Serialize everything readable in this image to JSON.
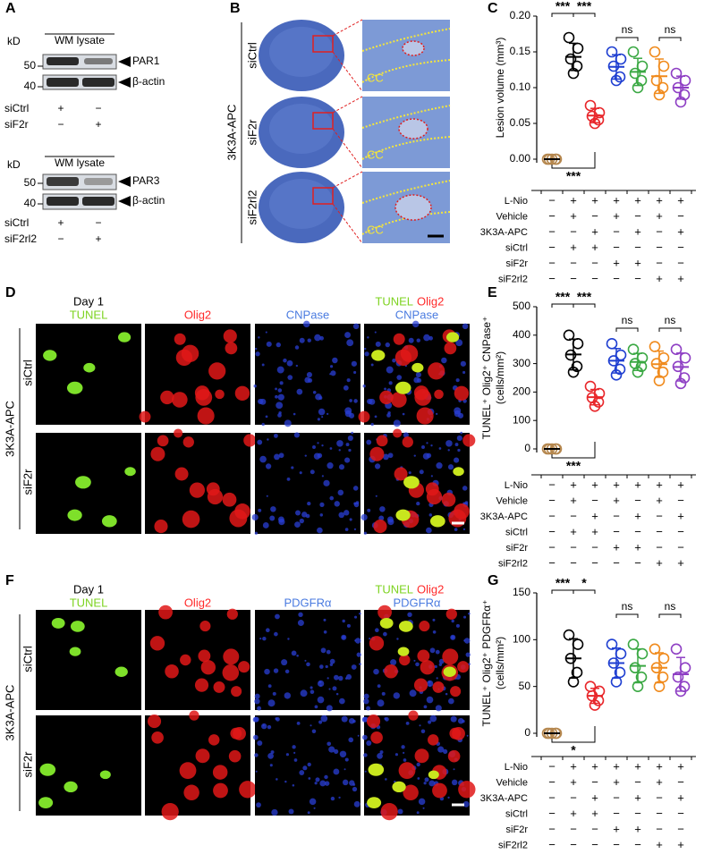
{
  "panel_labels": [
    "A",
    "B",
    "C",
    "D",
    "E",
    "F",
    "G"
  ],
  "panel_a": {
    "blots": [
      {
        "unit": "kD",
        "sample": "WM lysate",
        "bands": [
          "PAR1",
          "β-actin"
        ],
        "markers": [
          50,
          40
        ],
        "rows": [
          {
            "label": "siCtrl",
            "signs": [
              "+",
              "−"
            ]
          },
          {
            "label": "siF2r",
            "signs": [
              "−",
              "+"
            ]
          }
        ]
      },
      {
        "unit": "kD",
        "sample": "WM lysate",
        "bands": [
          "PAR3",
          "β-actin"
        ],
        "markers": [
          50,
          40
        ],
        "rows": [
          {
            "label": "siCtrl",
            "signs": [
              "+",
              "−"
            ]
          },
          {
            "label": "siF2rl2",
            "signs": [
              "−",
              "+"
            ]
          }
        ]
      }
    ]
  },
  "panel_b": {
    "treatment": "3K3A-APC",
    "rows": [
      "siCtrl",
      "siF2r",
      "siF2rl2"
    ],
    "region": "CC"
  },
  "panel_d": {
    "timepoint": "Day 1",
    "channels": [
      "TUNEL",
      "Olig2",
      "CNPase"
    ],
    "treatment": "3K3A-APC",
    "rows": [
      "siCtrl",
      "siF2r"
    ]
  },
  "panel_f": {
    "timepoint": "Day 1",
    "channels": [
      "TUNEL",
      "Olig2",
      "PDGFRα"
    ],
    "treatment": "3K3A-APC",
    "rows": [
      "siCtrl",
      "siF2r"
    ]
  },
  "chart_data": [
    {
      "type": "dotplot",
      "ylabel": [
        "Lesion volume (mm³)"
      ],
      "ylim": [
        0,
        0.2
      ],
      "yticks": [
        {
          "value": 0,
          "label": "0.00"
        },
        0.05,
        {
          "value": 0.1,
          "label": "0.10"
        },
        0.15,
        {
          "value": 0.2,
          "label": "0.20"
        }
      ],
      "series": [
        {
          "color": "#b5874e",
          "values": [
            0,
            0,
            0,
            0,
            0
          ],
          "mean": 0,
          "error": 0
        },
        {
          "color": "#000000",
          "values": [
            0.17,
            0.155,
            0.14,
            0.13,
            0.12
          ],
          "mean": 0.143,
          "error": 0.019
        },
        {
          "color": "#e8262a",
          "values": [
            0.075,
            0.065,
            0.06,
            0.055,
            0.05
          ],
          "mean": 0.061,
          "error": 0.01
        },
        {
          "color": "#1f3fd1",
          "values": [
            0.15,
            0.14,
            0.13,
            0.115,
            0.11
          ],
          "mean": 0.129,
          "error": 0.017
        },
        {
          "color": "#3aa843",
          "values": [
            0.15,
            0.13,
            0.12,
            0.11,
            0.1
          ],
          "mean": 0.122,
          "error": 0.019
        },
        {
          "color": "#f08a1c",
          "values": [
            0.15,
            0.13,
            0.11,
            0.1,
            0.09
          ],
          "mean": 0.116,
          "error": 0.024
        },
        {
          "color": "#8e3fc4",
          "values": [
            0.12,
            0.11,
            0.1,
            0.09,
            0.08
          ],
          "mean": 0.1,
          "error": 0.016
        }
      ],
      "annotations": [
        "***",
        "***",
        "ns",
        "ns",
        "***"
      ],
      "conditions": [
        {
          "label": "L-Nio",
          "signs": [
            "−",
            "+",
            "+",
            "+",
            "+",
            "+",
            "+"
          ]
        },
        {
          "label": "Vehicle",
          "signs": [
            "−",
            "+",
            "−",
            "+",
            "−",
            "+",
            "−"
          ]
        },
        {
          "label": "3K3A-APC",
          "signs": [
            "−",
            "−",
            "+",
            "−",
            "+",
            "−",
            "+"
          ]
        },
        {
          "label": "siCtrl",
          "signs": [
            "−",
            "+",
            "+",
            "−",
            "−",
            "−",
            "−"
          ]
        },
        {
          "label": "siF2r",
          "signs": [
            "−",
            "−",
            "−",
            "+",
            "+",
            "−",
            "−"
          ]
        },
        {
          "label": "siF2rl2",
          "signs": [
            "−",
            "−",
            "−",
            "−",
            "−",
            "+",
            "+"
          ]
        }
      ]
    },
    {
      "type": "dotplot",
      "ylabel": [
        "TUNEL⁺ Olig2⁺ CNPase⁺",
        "(cells/mm²)"
      ],
      "ylim": [
        0,
        500
      ],
      "yticks": [
        0,
        100,
        200,
        300,
        400,
        500
      ],
      "series": [
        {
          "color": "#b5874e",
          "values": [
            0,
            0,
            0,
            0,
            0
          ],
          "mean": 0,
          "error": 0
        },
        {
          "color": "#000000",
          "values": [
            400,
            370,
            330,
            290,
            270
          ],
          "mean": 332,
          "error": 54
        },
        {
          "color": "#e8262a",
          "values": [
            220,
            195,
            180,
            165,
            150
          ],
          "mean": 182,
          "error": 27
        },
        {
          "color": "#1f3fd1",
          "values": [
            370,
            330,
            310,
            280,
            260
          ],
          "mean": 310,
          "error": 43
        },
        {
          "color": "#3aa843",
          "values": [
            350,
            320,
            300,
            290,
            270
          ],
          "mean": 306,
          "error": 30
        },
        {
          "color": "#f08a1c",
          "values": [
            360,
            320,
            300,
            270,
            240
          ],
          "mean": 298,
          "error": 46
        },
        {
          "color": "#8e3fc4",
          "values": [
            350,
            320,
            290,
            250,
            230
          ],
          "mean": 288,
          "error": 49
        }
      ],
      "annotations": [
        "***",
        "***",
        "ns",
        "ns",
        "***"
      ],
      "conditions": [
        {
          "label": "L-Nio",
          "signs": [
            "−",
            "+",
            "+",
            "+",
            "+",
            "+",
            "+"
          ]
        },
        {
          "label": "Vehicle",
          "signs": [
            "−",
            "+",
            "−",
            "+",
            "−",
            "+",
            "−"
          ]
        },
        {
          "label": "3K3A-APC",
          "signs": [
            "−",
            "−",
            "+",
            "−",
            "+",
            "−",
            "+"
          ]
        },
        {
          "label": "siCtrl",
          "signs": [
            "−",
            "+",
            "+",
            "−",
            "−",
            "−",
            "−"
          ]
        },
        {
          "label": "siF2r",
          "signs": [
            "−",
            "−",
            "−",
            "+",
            "+",
            "−",
            "−"
          ]
        },
        {
          "label": "siF2rl2",
          "signs": [
            "−",
            "−",
            "−",
            "−",
            "−",
            "+",
            "+"
          ]
        }
      ]
    },
    {
      "type": "dotplot",
      "ylabel": [
        "TUNEL⁺ Olig2⁺ PDGFRα⁺",
        "(cells/mm²)"
      ],
      "ylim": [
        0,
        150
      ],
      "yticks": [
        0,
        50,
        100,
        150
      ],
      "series": [
        {
          "color": "#b5874e",
          "values": [
            0,
            0,
            0,
            0,
            0
          ],
          "mean": 0,
          "error": 0
        },
        {
          "color": "#000000",
          "values": [
            105,
            95,
            80,
            65,
            55
          ],
          "mean": 80,
          "error": 21
        },
        {
          "color": "#e8262a",
          "values": [
            50,
            45,
            40,
            35,
            30
          ],
          "mean": 40,
          "error": 8
        },
        {
          "color": "#1f3fd1",
          "values": [
            95,
            85,
            75,
            65,
            55
          ],
          "mean": 75,
          "error": 16
        },
        {
          "color": "#3aa843",
          "values": [
            95,
            85,
            70,
            60,
            50
          ],
          "mean": 72,
          "error": 18
        },
        {
          "color": "#f08a1c",
          "values": [
            90,
            80,
            70,
            60,
            50
          ],
          "mean": 70,
          "error": 16
        },
        {
          "color": "#8e3fc4",
          "values": [
            90,
            70,
            60,
            50,
            45
          ],
          "mean": 63,
          "error": 18
        }
      ],
      "annotations": [
        "***",
        "*",
        "ns",
        "ns",
        "*"
      ],
      "conditions": [
        {
          "label": "L-Nio",
          "signs": [
            "−",
            "+",
            "+",
            "+",
            "+",
            "+",
            "+"
          ]
        },
        {
          "label": "Vehicle",
          "signs": [
            "−",
            "+",
            "−",
            "+",
            "−",
            "+",
            "−"
          ]
        },
        {
          "label": "3K3A-APC",
          "signs": [
            "−",
            "−",
            "+",
            "−",
            "+",
            "−",
            "+"
          ]
        },
        {
          "label": "siCtrl",
          "signs": [
            "−",
            "+",
            "+",
            "−",
            "−",
            "−",
            "−"
          ]
        },
        {
          "label": "siF2r",
          "signs": [
            "−",
            "−",
            "−",
            "+",
            "+",
            "−",
            "−"
          ]
        },
        {
          "label": "siF2rl2",
          "signs": [
            "−",
            "−",
            "−",
            "−",
            "−",
            "+",
            "+"
          ]
        }
      ]
    }
  ]
}
